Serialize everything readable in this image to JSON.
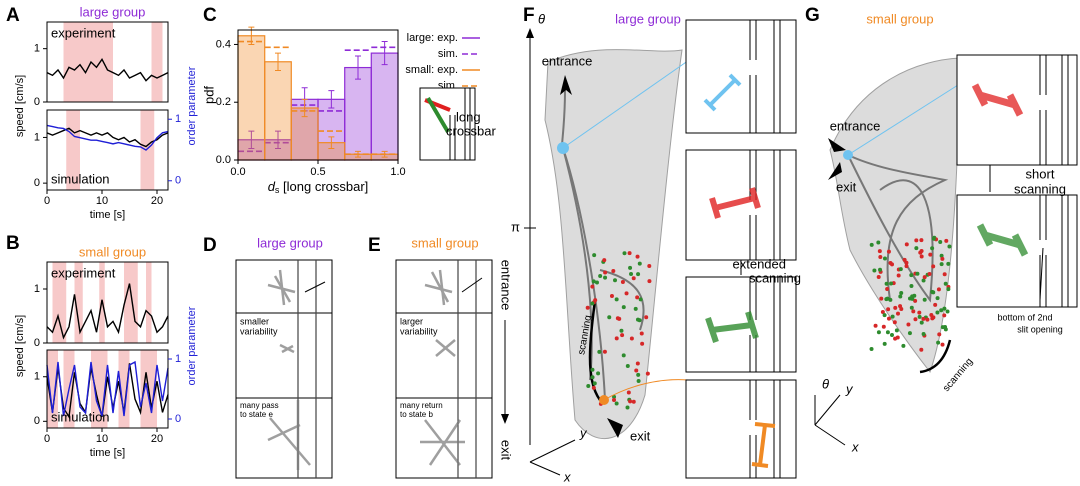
{
  "chart_data": [
    {
      "type": "line",
      "title": "large group",
      "title_color": "#8e2bd6",
      "annotation": "experiment",
      "x": [
        0,
        1,
        2,
        3,
        4,
        5,
        6,
        7,
        8,
        9,
        10,
        11,
        12,
        13,
        14,
        15,
        16,
        17,
        18,
        19,
        20,
        21,
        22
      ],
      "xlim": [
        0,
        22
      ],
      "ylim": [
        0,
        1.5
      ],
      "yticks": [
        0,
        1
      ],
      "highlights": [
        [
          3,
          12
        ],
        [
          19,
          21
        ]
      ],
      "highlight_color": "#f7c9c9",
      "series": [
        {
          "name": "speed",
          "color": "#000000",
          "values": [
            0.55,
            0.5,
            0.6,
            0.45,
            0.65,
            0.6,
            0.7,
            0.55,
            0.75,
            0.65,
            0.8,
            0.6,
            0.55,
            0.5,
            0.6,
            0.45,
            0.5,
            0.55,
            0.4,
            0.5,
            0.45,
            0.5,
            0.55
          ]
        }
      ]
    },
    {
      "type": "line",
      "annotation": "simulation",
      "ylabel": "speed [cm/s]",
      "y2label": "order parameter",
      "xlabel": "time [s]",
      "x": [
        0,
        1,
        2,
        3,
        4,
        5,
        6,
        7,
        8,
        9,
        10,
        11,
        12,
        13,
        14,
        15,
        16,
        17,
        18,
        19,
        20,
        21,
        22
      ],
      "xlim": [
        0,
        22
      ],
      "xticks": [
        0,
        10,
        20
      ],
      "ylim": [
        -0.15,
        1.6
      ],
      "yticks": [
        0,
        1
      ],
      "y2lim": [
        -0.15,
        1.15
      ],
      "y2ticks": [
        0,
        1
      ],
      "highlights": [
        [
          3.5,
          6
        ],
        [
          17,
          19.5
        ]
      ],
      "highlight_color": "#f7c9c9",
      "series": [
        {
          "name": "speed",
          "color": "#000000",
          "values": [
            1.1,
            1.05,
            1.1,
            1.15,
            1.2,
            1.1,
            1.15,
            1.1,
            1.05,
            1.1,
            1.05,
            1.1,
            1.0,
            0.95,
            1.0,
            0.9,
            0.95,
            0.85,
            0.8,
            0.9,
            0.95,
            1.05,
            1.1
          ]
        },
        {
          "name": "order parameter",
          "color": "#1f1fd6",
          "axis": "y2",
          "values": [
            0.9,
            0.88,
            0.86,
            0.85,
            0.8,
            0.72,
            0.7,
            0.68,
            0.66,
            0.66,
            0.64,
            0.62,
            0.6,
            0.62,
            0.6,
            0.58,
            0.56,
            0.55,
            0.5,
            0.58,
            0.7,
            0.78,
            0.8
          ]
        }
      ]
    },
    {
      "type": "line",
      "title": "small group",
      "title_color": "#f08a24",
      "annotation": "experiment",
      "x": [
        0,
        1,
        2,
        3,
        4,
        5,
        6,
        7,
        8,
        9,
        10,
        11,
        12,
        13,
        14,
        15,
        16,
        17,
        18,
        19,
        20,
        21,
        22
      ],
      "xlim": [
        0,
        22
      ],
      "ylim": [
        0,
        1.5
      ],
      "yticks": [
        0,
        1
      ],
      "highlights": [
        [
          1,
          3.5
        ],
        [
          5,
          6.5
        ],
        [
          9.5,
          10.5
        ],
        [
          14,
          16.5
        ],
        [
          18,
          19
        ]
      ],
      "highlight_color": "#f7c9c9",
      "series": [
        {
          "name": "speed",
          "color": "#000000",
          "values": [
            0.3,
            0.2,
            0.5,
            0.1,
            0.3,
            0.9,
            0.2,
            0.4,
            0.6,
            0.2,
            0.8,
            0.3,
            0.4,
            0.2,
            0.7,
            1.1,
            0.4,
            0.3,
            0.6,
            0.5,
            0.2,
            0.3,
            0.5
          ]
        }
      ]
    },
    {
      "type": "line",
      "annotation": "simulation",
      "ylabel": "speed [cm/s]",
      "y2label": "order parameter",
      "xlabel": "time [s]",
      "x": [
        0,
        1,
        2,
        3,
        4,
        5,
        6,
        7,
        8,
        9,
        10,
        11,
        12,
        13,
        14,
        15,
        16,
        17,
        18,
        19,
        20,
        21,
        22
      ],
      "xlim": [
        0,
        22
      ],
      "xticks": [
        0,
        10,
        20
      ],
      "ylim": [
        -0.15,
        1.6
      ],
      "yticks": [
        0,
        1
      ],
      "y2lim": [
        -0.15,
        1.15
      ],
      "y2ticks": [
        0,
        1
      ],
      "highlights": [
        [
          0,
          2
        ],
        [
          3,
          5
        ],
        [
          8,
          11
        ],
        [
          13,
          15
        ],
        [
          17,
          20
        ]
      ],
      "highlight_color": "#f7c9c9",
      "series": [
        {
          "name": "speed",
          "color": "#000000",
          "values": [
            1.0,
            0.2,
            1.2,
            0.3,
            0.1,
            1.1,
            0.4,
            0.2,
            1.2,
            0.6,
            0.1,
            1.0,
            0.3,
            0.9,
            0.2,
            1.3,
            0.5,
            0.2,
            1.1,
            0.3,
            0.9,
            0.2,
            0.6
          ]
        },
        {
          "name": "order parameter",
          "color": "#1f1fd6",
          "axis": "y2",
          "values": [
            0.9,
            0.1,
            0.95,
            0.05,
            0.5,
            0.9,
            0.2,
            0.1,
            0.95,
            0.3,
            0.05,
            0.9,
            0.1,
            0.8,
            0.05,
            0.9,
            0.95,
            0.2,
            0.6,
            0.1,
            0.9,
            0.3,
            0.85
          ]
        }
      ]
    },
    {
      "type": "histogram",
      "ylabel": "pdf",
      "xlabel": {
        "var": "d",
        "sub": "s",
        "rest": " [long crossbar]"
      },
      "bins": [
        0,
        0.167,
        0.333,
        0.5,
        0.667,
        0.833,
        1.0
      ],
      "xlim": [
        0,
        1
      ],
      "xticks": [
        {
          "value": 0,
          "label": "0.0"
        },
        0.5,
        {
          "value": 1,
          "label": "1.0"
        }
      ],
      "ylim": [
        0,
        0.45
      ],
      "yticks": [
        {
          "value": 0,
          "label": "0.0"
        },
        0.2,
        0.4
      ],
      "inset_label": [
        "long",
        "crossbar"
      ],
      "series": [
        {
          "name": "large: exp.",
          "color": "#8e2bd6",
          "style": "solid",
          "values": [
            0.07,
            0.07,
            0.21,
            0.21,
            0.32,
            0.37
          ],
          "errors": [
            0.03,
            0.03,
            0.04,
            0.03,
            0.04,
            0.04
          ]
        },
        {
          "name": "sim.",
          "color": "#8e2bd6",
          "style": "dashed",
          "values": [
            0.03,
            0.06,
            0.19,
            0.17,
            0.38,
            0.39
          ]
        },
        {
          "name": "small: exp.",
          "color": "#f08a24",
          "style": "solid",
          "values": [
            0.43,
            0.34,
            0.18,
            0.06,
            0.02,
            0.02
          ],
          "errors": [
            0.03,
            0.03,
            0.03,
            0.02,
            0.01,
            0.01
          ]
        },
        {
          "name": "sim.",
          "color": "#f08a24",
          "style": "dashed",
          "values": [
            0.41,
            0.39,
            0.17,
            0.1,
            0.02,
            0.02
          ]
        }
      ]
    }
  ],
  "panel_letters": [
    "A",
    "B",
    "C",
    "D",
    "E",
    "F",
    "G"
  ],
  "panel_D": {
    "title": "large group",
    "middle": [
      "smaller",
      "variability"
    ],
    "bottom": [
      "many pass",
      "to state e"
    ]
  },
  "panel_E": {
    "title": "small group",
    "middle": [
      "larger",
      "variability"
    ],
    "bottom": [
      "many return",
      "to state b"
    ],
    "entrance": "entrance",
    "exit": "exit"
  },
  "panel_F": {
    "title": "large group",
    "theta": "θ",
    "pi": "π",
    "entrance": "entrance",
    "exit": "exit",
    "scanning": "scanning",
    "extended": [
      "extended",
      "scanning"
    ],
    "y": "y",
    "x": "x"
  },
  "panel_G": {
    "title": "small group",
    "entrance": "entrance",
    "exit": "exit",
    "short": [
      "short",
      "scanning"
    ],
    "scanning": "scanning",
    "bottom": [
      "bottom of 2nd",
      "slit opening"
    ],
    "theta": "θ",
    "y": "y",
    "x": "x"
  }
}
